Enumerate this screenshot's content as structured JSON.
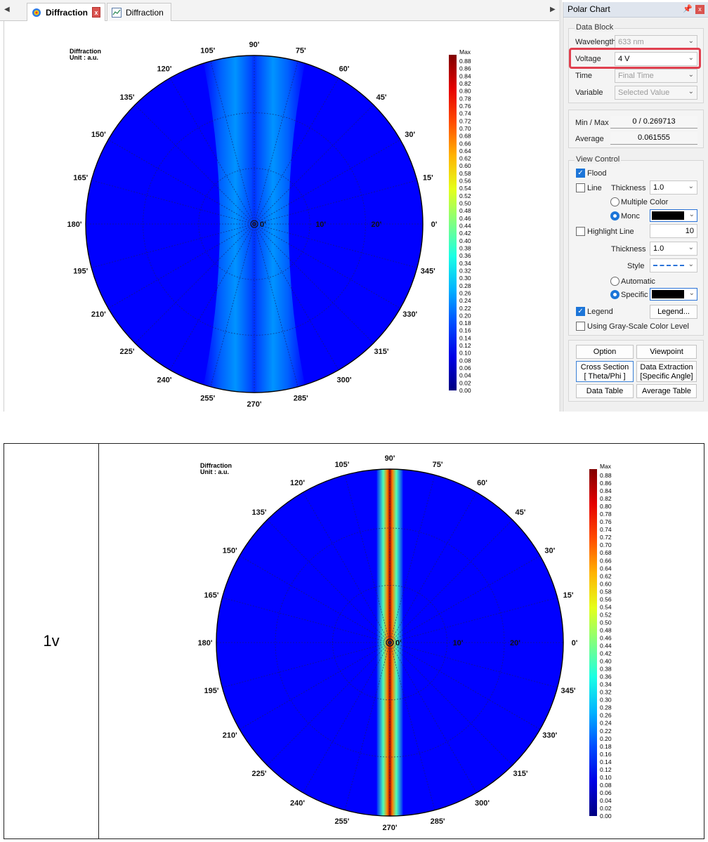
{
  "tabs": {
    "active_label": "Diffraction",
    "close_label": "x",
    "second_label": "Diffraction"
  },
  "panel": {
    "title": "Polar Chart",
    "data_block": {
      "title": "Data Block",
      "wavelength_label": "Wavelength",
      "wavelength_value": "633 nm",
      "voltage_label": "Voltage",
      "voltage_value": "4 V",
      "time_label": "Time",
      "time_value": "Final Time",
      "variable_label": "Variable",
      "variable_value": "Selected Value"
    },
    "stats": {
      "minmax_label": "Min / Max",
      "minmax_value": "0 / 0.269713",
      "average_label": "Average",
      "average_value": "0.061555"
    },
    "view_control": {
      "title": "View Control",
      "flood_label": "Flood",
      "flood_checked": true,
      "line_label": "Line",
      "line_checked": false,
      "thickness_label": "Thickness",
      "thickness_value": "1.0",
      "multiple_color_label": "Multiple Color",
      "mono_label": "Monc",
      "highlight_label": "Highlight Line",
      "highlight_value": "10",
      "thickness2_label": "Thickness",
      "thickness2_value": "1.0",
      "style_label": "Style",
      "automatic_label": "Automatic",
      "specific_label": "Specific",
      "legend_label": "Legend",
      "legend_checked": true,
      "legend_button": "Legend...",
      "grayscale_label": "Using Gray-Scale Color Level",
      "grayscale_checked": false
    },
    "buttons": {
      "option": "Option",
      "viewpoint": "Viewpoint",
      "cross_section_1": "Cross Section",
      "cross_section_2": "[ Theta/Phi ]",
      "data_extraction_1": "Data Extraction",
      "data_extraction_2": "[Specific Angle]",
      "data_table": "Data Table",
      "average_table": "Average Table"
    }
  },
  "comparison": {
    "row_label": "1v"
  },
  "colors": {
    "field_blue": "#0b3dfa",
    "highlight_red": "#e0404f",
    "accent": "#1c75d8"
  },
  "chart_data": [
    {
      "type": "heatmap",
      "projection": "polar",
      "title": "Diffraction",
      "subtitle": "Unit : a.u.",
      "angle_labels": [
        "0'",
        "15'",
        "30'",
        "45'",
        "60'",
        "75'",
        "90'",
        "105'",
        "120'",
        "135'",
        "150'",
        "165'",
        "180'",
        "195'",
        "210'",
        "225'",
        "240'",
        "255'",
        "270'",
        "285'",
        "300'",
        "315'",
        "330'",
        "345'"
      ],
      "radial_labels": [
        "0'",
        "10'",
        "20'"
      ],
      "colorbar_max_label": "Max",
      "colorbar_ticks": [
        "0.88",
        "0.86",
        "0.84",
        "0.82",
        "0.80",
        "0.78",
        "0.76",
        "0.74",
        "0.72",
        "0.70",
        "0.68",
        "0.66",
        "0.64",
        "0.62",
        "0.60",
        "0.58",
        "0.56",
        "0.54",
        "0.52",
        "0.50",
        "0.48",
        "0.46",
        "0.44",
        "0.42",
        "0.40",
        "0.38",
        "0.36",
        "0.34",
        "0.32",
        "0.30",
        "0.28",
        "0.26",
        "0.24",
        "0.22",
        "0.20",
        "0.18",
        "0.16",
        "0.14",
        "0.12",
        "0.10",
        "0.08",
        "0.06",
        "0.04",
        "0.02",
        "0.00"
      ],
      "pattern": "dual-band",
      "peak_value": 0.3
    },
    {
      "type": "heatmap",
      "projection": "polar",
      "title": "Diffraction",
      "subtitle": "Unit : a.u.",
      "angle_labels": [
        "0'",
        "15'",
        "30'",
        "45'",
        "60'",
        "75'",
        "90'",
        "105'",
        "120'",
        "135'",
        "150'",
        "165'",
        "180'",
        "195'",
        "210'",
        "225'",
        "240'",
        "255'",
        "270'",
        "285'",
        "300'",
        "315'",
        "330'",
        "345'"
      ],
      "radial_labels": [
        "0'",
        "10'",
        "20'"
      ],
      "colorbar_max_label": "Max",
      "colorbar_ticks": [
        "0.88",
        "0.86",
        "0.84",
        "0.82",
        "0.80",
        "0.78",
        "0.76",
        "0.74",
        "0.72",
        "0.70",
        "0.68",
        "0.66",
        "0.64",
        "0.62",
        "0.60",
        "0.58",
        "0.56",
        "0.54",
        "0.52",
        "0.50",
        "0.48",
        "0.46",
        "0.44",
        "0.42",
        "0.40",
        "0.38",
        "0.36",
        "0.34",
        "0.32",
        "0.30",
        "0.28",
        "0.26",
        "0.24",
        "0.22",
        "0.20",
        "0.18",
        "0.16",
        "0.14",
        "0.12",
        "0.10",
        "0.08",
        "0.06",
        "0.04",
        "0.02",
        "0.00"
      ],
      "pattern": "single-band",
      "peak_value": 0.9
    }
  ]
}
